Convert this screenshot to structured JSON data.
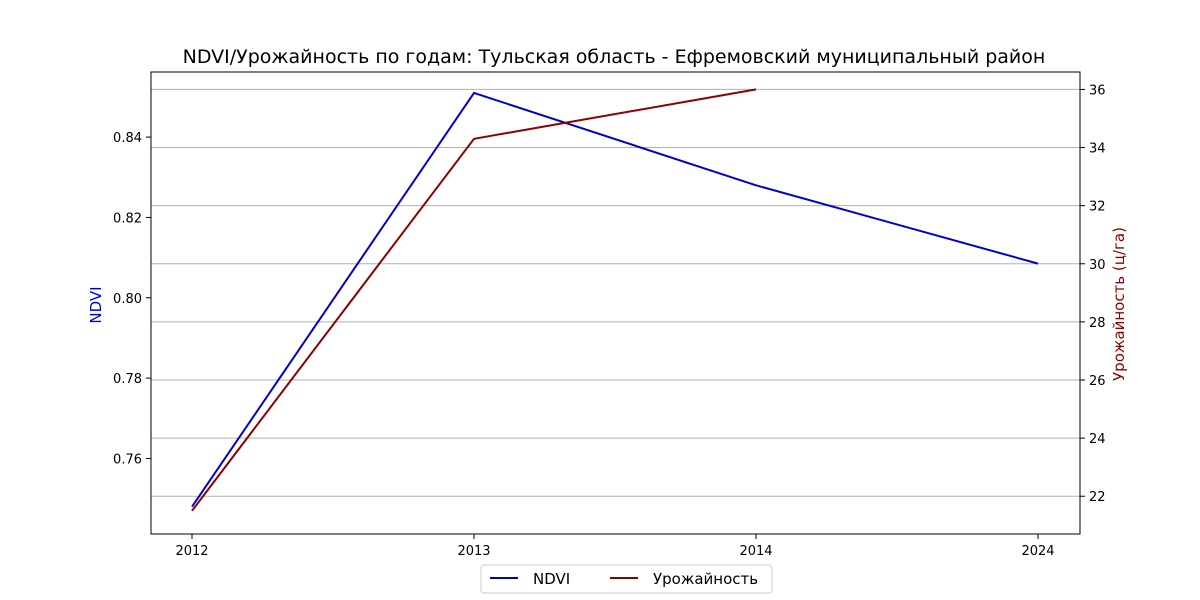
{
  "chart_data": {
    "type": "line",
    "title": "NDVI/Урожайность по годам: Тульская область - Ефремовский муниципальный район",
    "categories": [
      "2012",
      "2013",
      "2014",
      "2024"
    ],
    "y_left": {
      "label": "NDVI",
      "color": "#0000cc",
      "lim": [
        0.7412,
        0.8562
      ],
      "ticks": [
        0.76,
        0.78,
        0.8,
        0.82,
        0.84
      ],
      "tick_labels": [
        "0.76",
        "0.78",
        "0.80",
        "0.82",
        "0.84"
      ]
    },
    "y_right": {
      "label": "Урожайность (ц/га)",
      "color": "#8b0000",
      "lim": [
        20.7,
        36.6
      ],
      "ticks": [
        22,
        24,
        26,
        28,
        30,
        32,
        34,
        36
      ],
      "tick_labels": [
        "22",
        "24",
        "26",
        "28",
        "30",
        "32",
        "34",
        "36"
      ]
    },
    "series": [
      {
        "name": "NDVI",
        "axis": "left",
        "color": "#0000cc",
        "values": [
          0.748,
          0.851,
          0.828,
          0.8085
        ]
      },
      {
        "name": "Урожайность",
        "axis": "right",
        "color": "#8b0000",
        "values": [
          21.5,
          34.3,
          36.0,
          null
        ]
      }
    ],
    "grid": "horizontal at right-axis ticks",
    "legend_position": "bottom-center"
  }
}
